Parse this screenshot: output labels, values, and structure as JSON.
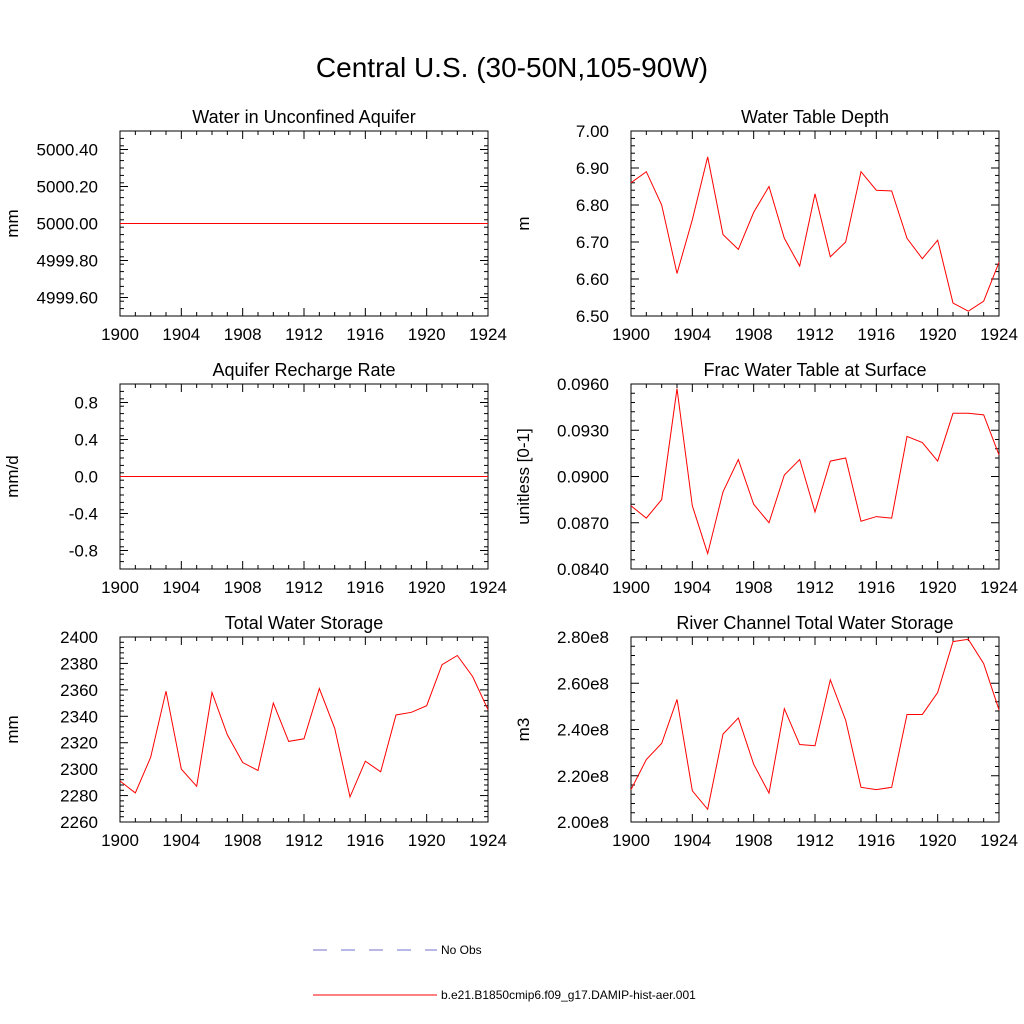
{
  "title": "Central U.S. (30-50N,105-90W)",
  "colors": {
    "model": "#ff0000",
    "obs": "#6f6fd0",
    "axis": "#000000"
  },
  "legend": {
    "items": [
      {
        "label": "No Obs",
        "style": "dashed",
        "color": "#6f6fd0"
      },
      {
        "label": "b.e21.B1850cmip6.f09_g17.DAMIP-hist-aer.001",
        "style": "solid",
        "color": "#ff0000"
      }
    ]
  },
  "chart_data": [
    {
      "type": "line",
      "title": "Water in Unconfined Aquifer",
      "ylabel": "mm",
      "xlim": [
        1900,
        1924
      ],
      "ylim": [
        4999.5,
        5000.5
      ],
      "xticks": [
        "1900",
        "1904",
        "1908",
        "1912",
        "1916",
        "1920",
        "1924"
      ],
      "yticks": [
        "4999.60",
        "4999.80",
        "5000.00",
        "5000.20",
        "5000.40"
      ],
      "series": [
        {
          "x": [
            1900,
            1924
          ],
          "values": [
            5000.0,
            5000.0
          ]
        }
      ]
    },
    {
      "type": "line",
      "title": "Water Table Depth",
      "ylabel": "m",
      "xlim": [
        1900,
        1924
      ],
      "ylim": [
        6.5,
        7.0
      ],
      "xticks": [
        "1900",
        "1904",
        "1908",
        "1912",
        "1916",
        "1920",
        "1924"
      ],
      "yticks": [
        "6.50",
        "6.60",
        "6.70",
        "6.80",
        "6.90",
        "7.00"
      ],
      "series": [
        {
          "x": [
            1900,
            1901,
            1902,
            1903,
            1904,
            1905,
            1906,
            1907,
            1908,
            1909,
            1910,
            1911,
            1912,
            1913,
            1914,
            1915,
            1916,
            1917,
            1918,
            1919,
            1920,
            1921,
            1922,
            1923,
            1924
          ],
          "values": [
            6.86,
            6.89,
            6.8,
            6.615,
            6.76,
            6.93,
            6.72,
            6.68,
            6.78,
            6.85,
            6.71,
            6.635,
            6.83,
            6.66,
            6.7,
            6.89,
            6.84,
            6.838,
            6.71,
            6.655,
            6.705,
            6.535,
            6.513,
            6.54,
            6.645
          ]
        }
      ]
    },
    {
      "type": "line",
      "title": "Aquifer Recharge Rate",
      "ylabel": "mm/d",
      "xlim": [
        1900,
        1924
      ],
      "ylim": [
        -1.0,
        1.0
      ],
      "xticks": [
        "1900",
        "1904",
        "1908",
        "1912",
        "1916",
        "1920",
        "1924"
      ],
      "yticks": [
        "-0.8",
        "-0.4",
        "0.0",
        "0.4",
        "0.8"
      ],
      "series": [
        {
          "x": [
            1900,
            1924
          ],
          "values": [
            0.0,
            0.0
          ]
        }
      ]
    },
    {
      "type": "line",
      "title": "Frac Water Table at Surface",
      "ylabel": "unitless [0-1]",
      "xlim": [
        1900,
        1924
      ],
      "ylim": [
        0.084,
        0.096
      ],
      "xticks": [
        "1900",
        "1904",
        "1908",
        "1912",
        "1916",
        "1920",
        "1924"
      ],
      "yticks": [
        "0.0840",
        "0.0870",
        "0.0900",
        "0.0930",
        "0.0960"
      ],
      "series": [
        {
          "x": [
            1900,
            1901,
            1902,
            1903,
            1904,
            1905,
            1906,
            1907,
            1908,
            1909,
            1910,
            1911,
            1912,
            1913,
            1914,
            1915,
            1916,
            1917,
            1918,
            1919,
            1920,
            1921,
            1922,
            1923,
            1924
          ],
          "values": [
            0.0881,
            0.0873,
            0.0885,
            0.0957,
            0.0881,
            0.085,
            0.089,
            0.0911,
            0.0882,
            0.087,
            0.0901,
            0.0911,
            0.0877,
            0.091,
            0.0912,
            0.0871,
            0.0874,
            0.0873,
            0.0926,
            0.0922,
            0.091,
            0.0941,
            0.0941,
            0.094,
            0.0914
          ]
        }
      ]
    },
    {
      "type": "line",
      "title": "Total Water Storage",
      "ylabel": "mm",
      "xlim": [
        1900,
        1924
      ],
      "ylim": [
        2260,
        2400
      ],
      "xticks": [
        "1900",
        "1904",
        "1908",
        "1912",
        "1916",
        "1920",
        "1924"
      ],
      "yticks": [
        "2260",
        "2280",
        "2300",
        "2320",
        "2340",
        "2360",
        "2380",
        "2400"
      ],
      "series": [
        {
          "x": [
            1900,
            1901,
            1902,
            1903,
            1904,
            1905,
            1906,
            1907,
            1908,
            1909,
            1910,
            1911,
            1912,
            1913,
            1914,
            1915,
            1916,
            1917,
            1918,
            1919,
            1920,
            1921,
            1922,
            1923,
            1924
          ],
          "values": [
            2291,
            2282,
            2309,
            2359,
            2300,
            2287,
            2358,
            2326,
            2305,
            2299,
            2350,
            2321,
            2323,
            2361,
            2331,
            2279,
            2306,
            2298,
            2341,
            2343,
            2348,
            2379,
            2386,
            2370,
            2345
          ]
        }
      ]
    },
    {
      "type": "line",
      "title": "River Channel Total Water Storage",
      "ylabel": "m3",
      "xlim": [
        1900,
        1924
      ],
      "ylim": [
        200000000,
        280000000
      ],
      "xticks": [
        "1900",
        "1904",
        "1908",
        "1912",
        "1916",
        "1920",
        "1924"
      ],
      "yticks": [
        "2.00e8",
        "2.20e8",
        "2.40e8",
        "2.60e8",
        "2.80e8"
      ],
      "series": [
        {
          "x": [
            1900,
            1901,
            1902,
            1903,
            1904,
            1905,
            1906,
            1907,
            1908,
            1909,
            1910,
            1911,
            1912,
            1913,
            1914,
            1915,
            1916,
            1917,
            1918,
            1919,
            1920,
            1921,
            1922,
            1923,
            1924
          ],
          "values": [
            214000000,
            227000000,
            234000000,
            253000000,
            213500000,
            205500000,
            238000000,
            245000000,
            225000000,
            212500000,
            249000000,
            233500000,
            233000000,
            261500000,
            244000000,
            215000000,
            214000000,
            215000000,
            246500000,
            246500000,
            256000000,
            278000000,
            279000000,
            268500000,
            248500000
          ]
        }
      ]
    }
  ]
}
